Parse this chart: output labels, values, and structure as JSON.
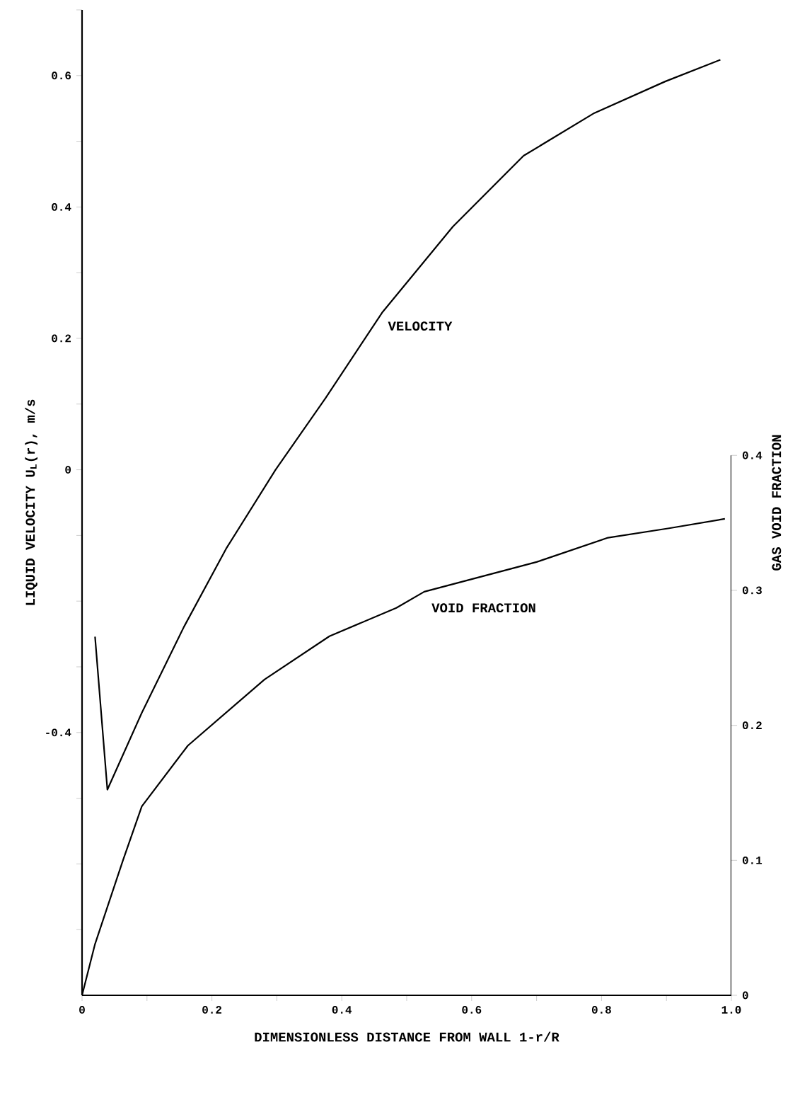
{
  "chart_data": {
    "type": "line",
    "xlabel": "DIMENSIONLESS DISTANCE FROM WALL    1-r/R",
    "ylabel": "LIQUID VELOCITY U$_{L}$(r), m/s",
    "y2label": "GAS VOID FRACTION",
    "xlim": [
      0,
      1
    ],
    "xticks": [
      0,
      {
        "value": 0.1,
        "label": null
      },
      0.2,
      {
        "value": 0.3,
        "label": null
      },
      0.4,
      {
        "value": 0.5,
        "label": null
      },
      0.6,
      {
        "value": 0.7,
        "label": null
      },
      0.8,
      {
        "value": 0.9,
        "label": null
      },
      {
        "value": 1,
        "label": "1.0"
      }
    ],
    "ylim": [
      -0.8,
      0.7
    ],
    "yticks": [
      {
        "value": -0.7,
        "label": null
      },
      {
        "value": -0.6,
        "label": null
      },
      {
        "value": -0.5,
        "label": null
      },
      -0.4,
      {
        "value": -0.3,
        "label": null
      },
      {
        "value": -0.2,
        "label": null
      },
      {
        "value": -0.1,
        "label": null
      },
      0,
      {
        "value": 0.1,
        "label": null
      },
      0.2,
      {
        "value": 0.3,
        "label": null
      },
      0.4,
      {
        "value": 0.5,
        "label": null
      },
      0.6,
      {
        "value": 0.7,
        "label": null
      }
    ],
    "y2lim": [
      0,
      0.73
    ],
    "y2ticks": [
      0,
      0.1,
      0.2,
      0.3,
      0.4
    ],
    "marker": "none",
    "line_style": "solid",
    "series": [
      {
        "name": "VELOCITY",
        "color": "#000000",
        "x": [
          0.02,
          0.039,
          0.092,
          0.157,
          0.222,
          0.298,
          0.375,
          0.462,
          0.571,
          0.68,
          0.789,
          0.898,
          0.983
        ],
        "values": [
          -0.254,
          -0.487,
          -0.37,
          -0.239,
          -0.12,
          0,
          0.109,
          0.239,
          0.37,
          0.478,
          0.543,
          0.591,
          0.624
        ]
      },
      {
        "name": "VOID FRACTION",
        "color": "#000000",
        "axis": "y2",
        "x": [
          0,
          0.02,
          0.063,
          0.092,
          0.163,
          0.281,
          0.381,
          0.484,
          0.527,
          0.7,
          0.81,
          0.904,
          0.99
        ],
        "values": [
          0,
          0.038,
          0.1,
          0.14,
          0.185,
          0.234,
          0.266,
          0.287,
          0.299,
          0.321,
          0.339,
          0.346,
          0.353
        ]
      }
    ]
  }
}
